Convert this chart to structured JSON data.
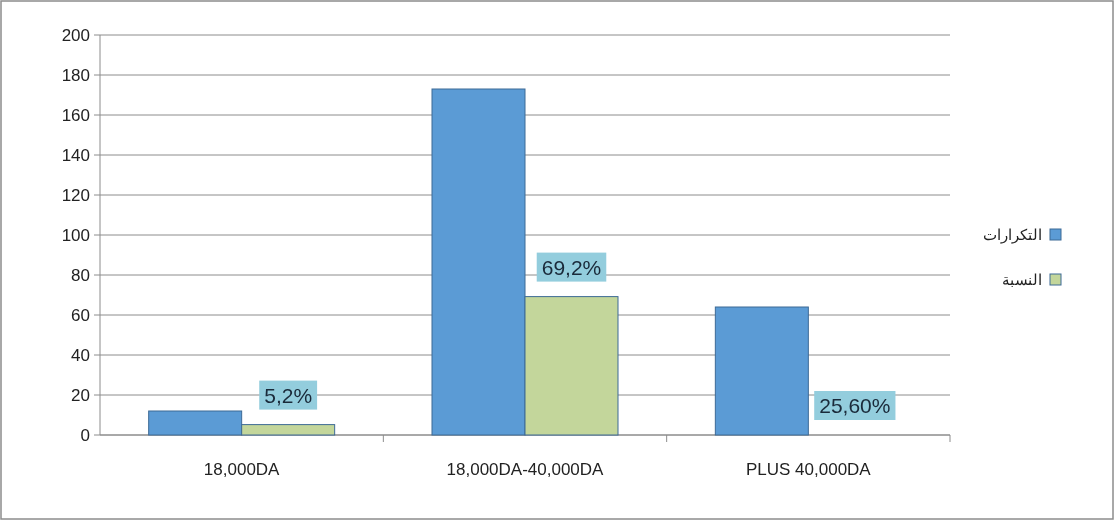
{
  "chart_data": {
    "type": "bar",
    "categories": [
      "18,000DA",
      "18,000DA-40,000DA",
      "PLUS 40,000DA"
    ],
    "series": [
      {
        "name": "التكرارات",
        "color": "#5b9bd5",
        "values": [
          12,
          173,
          64
        ]
      },
      {
        "name": "النسبة",
        "color": "#c3d69b",
        "values": [
          5.2,
          69.2,
          null
        ],
        "value_labels": [
          "5,2%",
          "69,2%",
          "25,60%"
        ]
      }
    ],
    "ylim": [
      0,
      200
    ],
    "yticks": [
      0,
      20,
      40,
      60,
      80,
      100,
      120,
      140,
      160,
      180,
      200
    ],
    "grid": "y",
    "legend": "right"
  }
}
